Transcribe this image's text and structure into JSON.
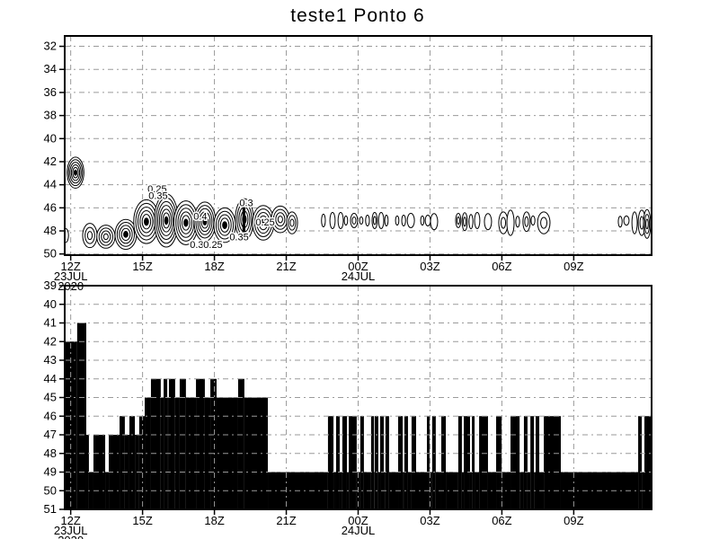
{
  "app": {
    "title": "teste1 Ponto 6"
  },
  "colors": {
    "foreground": "#000000",
    "background": "#ffffff",
    "grid": "#9a9a9a",
    "fill": "#000000"
  },
  "time_axis": {
    "ticks": [
      {
        "h": 0,
        "label": "12Z",
        "date": "23JUL",
        "year": "2020"
      },
      {
        "h": 3,
        "label": "15Z"
      },
      {
        "h": 6,
        "label": "18Z"
      },
      {
        "h": 9,
        "label": "21Z"
      },
      {
        "h": 12,
        "label": "00Z",
        "date": "24JUL"
      },
      {
        "h": 15,
        "label": "03Z"
      },
      {
        "h": 18,
        "label": "06Z"
      },
      {
        "h": 21,
        "label": "09Z"
      }
    ],
    "range_hours": [
      -0.25,
      24.25
    ]
  },
  "chart_data": [
    {
      "type": "contour",
      "title": "teste1 Ponto 6",
      "ylabel": "",
      "yticks": [
        32,
        34,
        36,
        38,
        40,
        42,
        44,
        46,
        48,
        50
      ],
      "ylim": [
        31.1,
        50.1
      ],
      "y_increases_downward": true,
      "grid": "dashed",
      "contour_interval": 0.05,
      "labeled_values": [
        0.25,
        0.3,
        0.35,
        0.4
      ],
      "contour_labels": [
        {
          "v": "0.25",
          "h": 3.61,
          "lev": 44.32
        },
        {
          "v": "0.35",
          "h": 3.65,
          "lev": 44.94
        },
        {
          "v": "0.4",
          "h": 5.41,
          "lev": 46.73
        },
        {
          "v": "0.3",
          "h": 7.33,
          "lev": 45.56
        },
        {
          "v": "0.25",
          "h": 8.12,
          "lev": 47.2
        },
        {
          "v": "0.35",
          "h": 7.03,
          "lev": 48.52
        },
        {
          "v": "0.3",
          "h": 5.26,
          "lev": 49.15
        },
        {
          "v": "0.25",
          "h": 5.94,
          "lev": 49.15
        }
      ],
      "features": {
        "left_cell": [
          0.2,
          42.95,
          0.35,
          1.35,
          6
        ],
        "axis_cell": [
          -0.21,
          48.4,
          0.12,
          0.6,
          1
        ],
        "solid_bar": [
          7.17,
          7.29,
          45.3,
          48.6
        ],
        "cluster": [
          [
            0.8,
            48.4,
            0.3,
            1.05,
            3
          ],
          [
            1.47,
            48.5,
            0.38,
            1.0,
            4
          ],
          [
            2.3,
            48.3,
            0.45,
            1.3,
            5
          ],
          [
            3.16,
            47.2,
            0.53,
            1.9,
            6
          ],
          [
            3.99,
            47.1,
            0.5,
            2.3,
            7
          ],
          [
            4.81,
            47.3,
            0.5,
            1.9,
            6
          ],
          [
            5.6,
            47.2,
            0.45,
            1.7,
            6
          ],
          [
            6.43,
            47.5,
            0.45,
            1.5,
            5
          ],
          [
            7.25,
            47.0,
            0.38,
            1.8,
            5
          ],
          [
            8.04,
            47.3,
            0.45,
            1.5,
            5
          ],
          [
            8.75,
            47.0,
            0.38,
            1.15,
            4
          ],
          [
            9.24,
            47.3,
            0.23,
            0.95,
            3
          ]
        ],
        "small_cells": [
          [
            10.55,
            47.1,
            0.08,
            0.55,
            1
          ],
          [
            10.93,
            47.1,
            0.11,
            0.7,
            1
          ],
          [
            11.27,
            47.1,
            0.11,
            0.7,
            1
          ],
          [
            11.49,
            47.1,
            0.07,
            0.4,
            1
          ],
          [
            11.83,
            47.1,
            0.15,
            0.62,
            2
          ],
          [
            12.13,
            47.1,
            0.07,
            0.32,
            1
          ],
          [
            12.39,
            47.1,
            0.08,
            0.47,
            1
          ],
          [
            12.69,
            47.1,
            0.11,
            0.7,
            2
          ],
          [
            12.96,
            47.1,
            0.11,
            0.7,
            1
          ],
          [
            13.18,
            47.1,
            0.07,
            0.47,
            1
          ],
          [
            13.63,
            47.1,
            0.07,
            0.4,
            1
          ],
          [
            13.9,
            47.1,
            0.08,
            0.47,
            1
          ],
          [
            14.2,
            47.1,
            0.15,
            0.62,
            1
          ],
          [
            14.68,
            47.1,
            0.07,
            0.4,
            1
          ],
          [
            14.91,
            47.1,
            0.11,
            0.47,
            1
          ],
          [
            15.17,
            47.2,
            0.15,
            0.7,
            1
          ],
          [
            16.18,
            47.1,
            0.11,
            0.62,
            2
          ],
          [
            16.45,
            47.2,
            0.11,
            0.78,
            2
          ],
          [
            16.71,
            47.2,
            0.08,
            0.62,
            1
          ],
          [
            16.97,
            47.1,
            0.11,
            0.7,
            1
          ],
          [
            17.42,
            47.2,
            0.15,
            0.7,
            1
          ],
          [
            18.06,
            47.3,
            0.19,
            0.95,
            2
          ],
          [
            18.36,
            47.3,
            0.15,
            1.1,
            1
          ],
          [
            18.66,
            47.2,
            0.08,
            0.47,
            1
          ],
          [
            19.03,
            47.2,
            0.15,
            0.85,
            2
          ],
          [
            19.3,
            47.1,
            0.08,
            0.4,
            1
          ],
          [
            19.75,
            47.3,
            0.26,
            0.95,
            2
          ],
          [
            22.94,
            47.2,
            0.08,
            0.47,
            1
          ],
          [
            23.2,
            47.1,
            0.11,
            0.4,
            1
          ],
          [
            23.54,
            47.3,
            0.11,
            0.95,
            1
          ],
          [
            23.84,
            47.3,
            0.15,
            1.1,
            2
          ],
          [
            24.06,
            47.4,
            0.15,
            1.25,
            3
          ]
        ]
      }
    },
    {
      "type": "area-steps",
      "title": "",
      "yticks": [
        39,
        40,
        41,
        42,
        43,
        44,
        45,
        46,
        47,
        48,
        49,
        50,
        51
      ],
      "ylim": [
        39,
        51
      ],
      "y_increases_downward": true,
      "fill_base_level": 51,
      "grid": "dashed",
      "segments": [
        [
          -0.25,
          0.27,
          42
        ],
        [
          0.27,
          0.65,
          41
        ],
        [
          0.65,
          0.76,
          47
        ],
        [
          0.76,
          0.95,
          49
        ],
        [
          0.95,
          1.44,
          47
        ],
        [
          1.44,
          1.59,
          49
        ],
        [
          1.59,
          2.04,
          47
        ],
        [
          2.04,
          2.26,
          46
        ],
        [
          2.26,
          2.45,
          47
        ],
        [
          2.45,
          2.68,
          46
        ],
        [
          2.68,
          2.86,
          47
        ],
        [
          2.86,
          3.09,
          46
        ],
        [
          3.09,
          3.35,
          45
        ],
        [
          3.35,
          3.76,
          44
        ],
        [
          3.76,
          3.88,
          45
        ],
        [
          3.88,
          4.03,
          44
        ],
        [
          4.03,
          4.1,
          45
        ],
        [
          4.1,
          4.36,
          44
        ],
        [
          4.36,
          4.55,
          45
        ],
        [
          4.55,
          4.81,
          44
        ],
        [
          4.81,
          5.23,
          45
        ],
        [
          5.23,
          5.6,
          44
        ],
        [
          5.6,
          5.83,
          45
        ],
        [
          5.83,
          6.09,
          44
        ],
        [
          6.09,
          6.99,
          45
        ],
        [
          6.99,
          7.25,
          44
        ],
        [
          7.25,
          8.23,
          45
        ],
        [
          8.23,
          10.74,
          49
        ],
        [
          10.74,
          10.97,
          46
        ],
        [
          10.97,
          11.08,
          49
        ],
        [
          11.08,
          11.23,
          46
        ],
        [
          11.23,
          11.34,
          49
        ],
        [
          11.34,
          11.53,
          46
        ],
        [
          11.53,
          11.61,
          49
        ],
        [
          11.61,
          11.94,
          46
        ],
        [
          11.94,
          12.09,
          49
        ],
        [
          12.09,
          12.24,
          46
        ],
        [
          12.24,
          12.54,
          49
        ],
        [
          12.54,
          12.66,
          46
        ],
        [
          12.66,
          12.69,
          49
        ],
        [
          12.69,
          12.84,
          46
        ],
        [
          12.84,
          12.92,
          49
        ],
        [
          12.92,
          13.07,
          46
        ],
        [
          13.07,
          13.14,
          49
        ],
        [
          13.14,
          13.29,
          46
        ],
        [
          13.29,
          13.67,
          49
        ],
        [
          13.67,
          13.86,
          46
        ],
        [
          13.86,
          13.93,
          49
        ],
        [
          13.93,
          14.08,
          46
        ],
        [
          14.08,
          14.23,
          49
        ],
        [
          14.23,
          14.42,
          46
        ],
        [
          14.42,
          14.87,
          49
        ],
        [
          14.87,
          14.98,
          46
        ],
        [
          14.98,
          15.09,
          49
        ],
        [
          15.09,
          15.24,
          46
        ],
        [
          15.24,
          15.47,
          49
        ],
        [
          15.47,
          15.66,
          46
        ],
        [
          15.66,
          16.18,
          49
        ],
        [
          16.18,
          16.33,
          46
        ],
        [
          16.33,
          16.41,
          49
        ],
        [
          16.41,
          16.67,
          46
        ],
        [
          16.67,
          16.75,
          49
        ],
        [
          16.75,
          16.86,
          46
        ],
        [
          16.86,
          17.05,
          49
        ],
        [
          17.05,
          17.42,
          46
        ],
        [
          17.42,
          17.76,
          49
        ],
        [
          17.76,
          17.99,
          46
        ],
        [
          17.99,
          18.36,
          49
        ],
        [
          18.36,
          18.74,
          46
        ],
        [
          18.74,
          18.92,
          49
        ],
        [
          18.92,
          19.07,
          46
        ],
        [
          19.07,
          19.19,
          49
        ],
        [
          19.19,
          19.34,
          46
        ],
        [
          19.34,
          19.41,
          49
        ],
        [
          19.41,
          19.56,
          46
        ],
        [
          19.56,
          19.75,
          49
        ],
        [
          19.75,
          20.46,
          46
        ],
        [
          20.46,
          23.69,
          49
        ],
        [
          23.69,
          23.84,
          46
        ],
        [
          23.84,
          23.95,
          49
        ],
        [
          23.95,
          24.25,
          46
        ]
      ]
    }
  ]
}
